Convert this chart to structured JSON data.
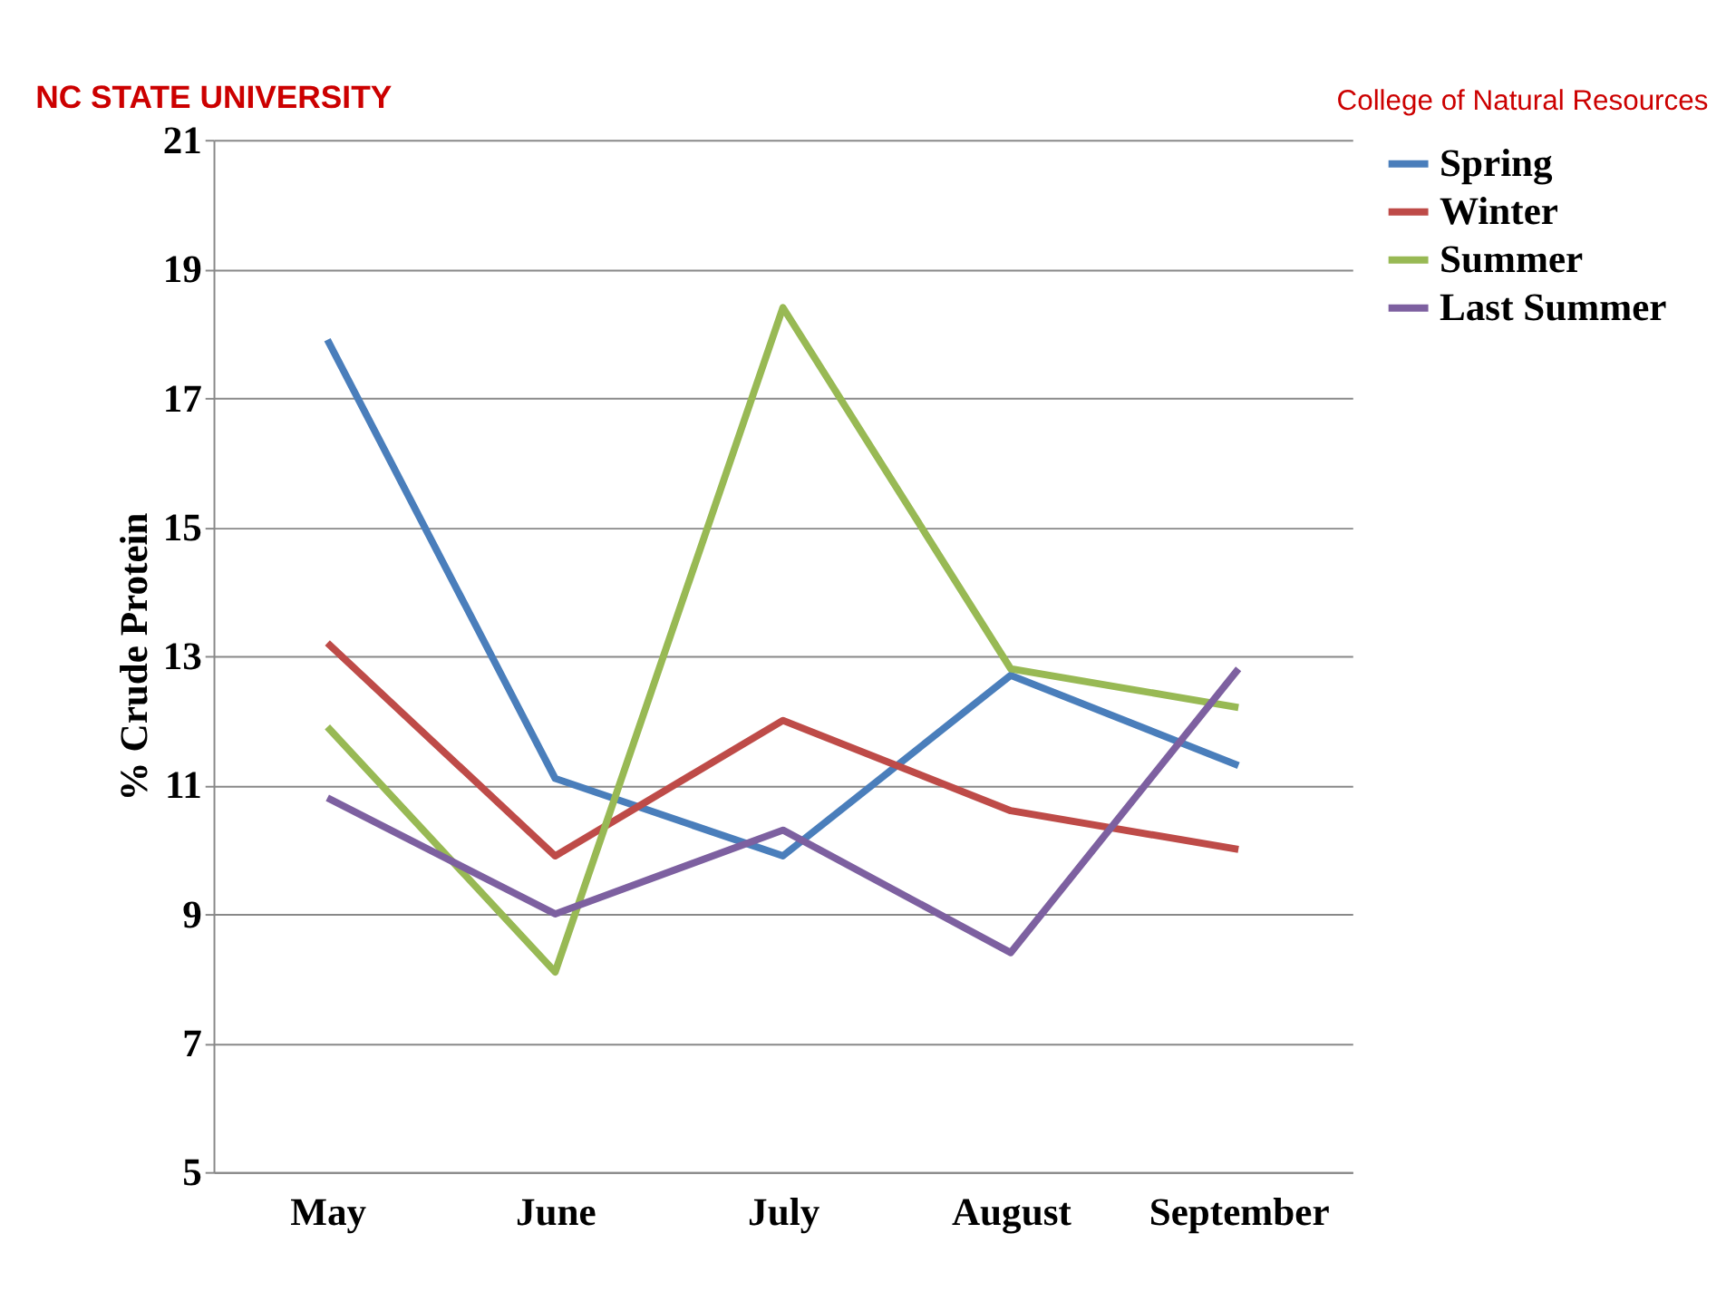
{
  "chart_data": {
    "type": "line",
    "ylabel": "% Crude Protein",
    "categories": [
      "May",
      "June",
      "July",
      "August",
      "September"
    ],
    "series": [
      {
        "name": "Spring",
        "color": "#4a7ebb",
        "values": [
          17.9,
          11.1,
          9.9,
          12.7,
          11.3
        ]
      },
      {
        "name": "Winter",
        "color": "#be4b48",
        "values": [
          13.2,
          9.9,
          12.0,
          10.6,
          10.0
        ]
      },
      {
        "name": "Summer",
        "color": "#98b954",
        "values": [
          11.9,
          8.1,
          18.4,
          12.8,
          12.2
        ]
      },
      {
        "name": "Last Summer",
        "color": "#7d60a0",
        "values": [
          10.8,
          9.0,
          10.3,
          8.4,
          12.8
        ]
      }
    ],
    "ylim": [
      5,
      21
    ],
    "yticks": [
      5,
      7,
      9,
      11,
      13,
      15,
      17,
      19,
      21
    ],
    "grid": "y",
    "legend": "right",
    "marker": "none",
    "line_style": "solid",
    "annotations": [
      "NC STATE UNIVERSITY",
      "College of Natural Resources"
    ]
  }
}
